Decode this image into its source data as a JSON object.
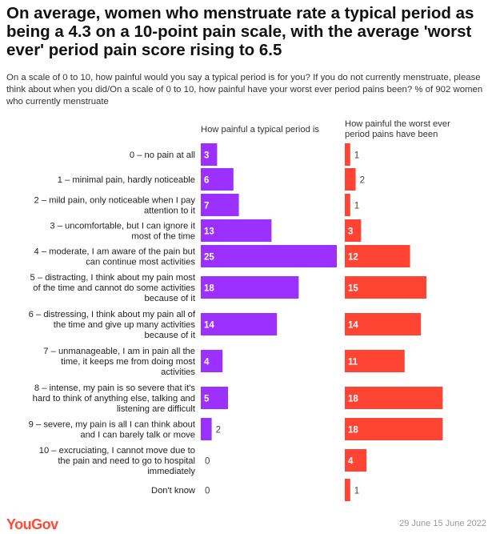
{
  "title": "On average, women who menstruate rate a typical period as being a 4.3 on a 10-point pain scale, with the average 'worst ever' period pain score rising to 6.5",
  "subtitle": "On a scale of 0 to 10, how painful would you say a typical period is for you? If you do not currently menstruate, please think about when you did/On a scale of 0 to 10, how painful have your worst ever period pains been? % of 902 women who currently menstruate",
  "brand": "YouGov",
  "date": "29 June 15 June 2022",
  "colors": {
    "typical": "#9b30ff",
    "worst": "#ff4433",
    "label": "#222222"
  },
  "chart_data": {
    "type": "bar",
    "orientation": "horizontal",
    "categories": [
      "0 – no pain at all",
      "1 – minimal pain, hardly noticeable",
      "2 – mild pain, only noticeable when I pay attention to it",
      "3 – uncomfortable, but I can ignore it most of the time",
      "4 – moderate, I am aware of the pain but can continue most activities",
      "5 – distracting, I think about my pain most of the time and cannot do some activities because of it",
      "6 – distressing, I think about my pain all of the time and give up many activities because of it",
      "7 – unmanageable, I am in pain all the time, it keeps me from doing most activities",
      "8 – intense, my pain is so severe that it's hard to think of anything else, talking and listening are difficult",
      "9 – severe, my pain is all I can think about and I can barely talk or move",
      "10 – excruciating, I cannot move due to the pain and need to go to hospital immediately",
      "Don't know"
    ],
    "category_lines": [
      [
        "0 – no pain at all"
      ],
      [
        "1 – minimal pain, hardly noticeable"
      ],
      [
        "2 – mild pain, only noticeable when I pay",
        "attention to it"
      ],
      [
        "3 – uncomfortable, but I can ignore it",
        "most of the time"
      ],
      [
        "4 – moderate, I am aware of the pain but",
        "can continue most activities"
      ],
      [
        "5 – distracting, I think about my pain most",
        "of the time and cannot do some activities",
        "because of it"
      ],
      [
        "6 – distressing, I think about my pain all of",
        "the time and give up many activities",
        "because of it"
      ],
      [
        "7 – unmanageable, I am in pain all the",
        "time, it keeps me from doing most",
        "activities"
      ],
      [
        "8 – intense, my pain is so severe that it's",
        "hard to think of anything else, talking and",
        "listening are difficult"
      ],
      [
        "9 – severe, my pain is all I can think about",
        "and I can barely talk or move"
      ],
      [
        "10 – excruciating, I cannot move due to",
        "the pain and need to go to hospital",
        "immediately"
      ],
      [
        "Don't know"
      ]
    ],
    "series": [
      {
        "name": "How painful a typical period is",
        "values": [
          3,
          6,
          7,
          13,
          25,
          18,
          14,
          4,
          5,
          2,
          0,
          0
        ]
      },
      {
        "name_lines": [
          "How painful the worst ever",
          "period pains have been"
        ],
        "name": "How painful the worst ever period pains have been",
        "values": [
          1,
          2,
          1,
          3,
          12,
          15,
          14,
          11,
          18,
          18,
          4,
          1
        ]
      }
    ]
  }
}
